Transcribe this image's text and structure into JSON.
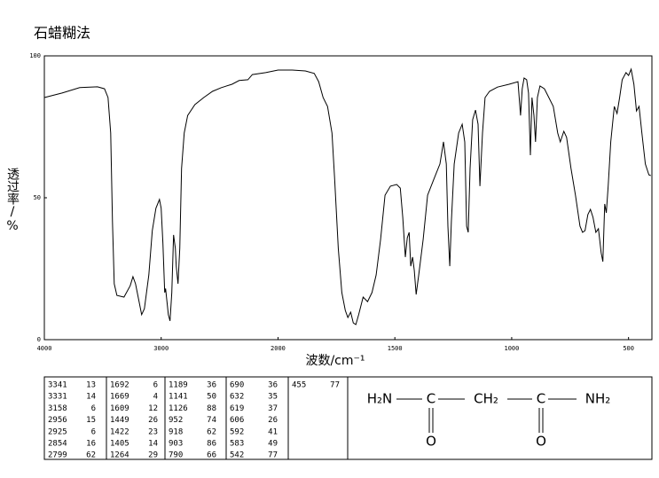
{
  "chart_data": {
    "type": "line",
    "title": "石蜡糊法",
    "x_label": "波数/cm⁻¹",
    "y_label": "透过率/%",
    "color": "#000000",
    "xlim": [
      4000,
      400
    ],
    "xticks": [
      4000,
      3000,
      2000,
      1500,
      1000,
      500
    ],
    "ylim": [
      0,
      100
    ],
    "yticks": [
      0,
      50,
      100
    ],
    "x": [
      4000,
      3848,
      3697,
      3545,
      3485,
      3455,
      3432,
      3417,
      3402,
      3379,
      3318,
      3265,
      3242,
      3220,
      3189,
      3167,
      3144,
      3106,
      3076,
      3045,
      3015,
      3000,
      2985,
      2970,
      2962,
      2939,
      2924,
      2909,
      2894,
      2879,
      2871,
      2856,
      2841,
      2826,
      2803,
      2773,
      2712,
      2636,
      2561,
      2485,
      2394,
      2333,
      2258,
      2220,
      2106,
      2000,
      1939,
      1883,
      1845,
      1826,
      1807,
      1788,
      1769,
      1758,
      1742,
      1727,
      1712,
      1701,
      1689,
      1678,
      1667,
      1655,
      1636,
      1617,
      1598,
      1580,
      1561,
      1542,
      1519,
      1492,
      1477,
      1466,
      1455,
      1447,
      1439,
      1432,
      1424,
      1417,
      1409,
      1398,
      1379,
      1360,
      1333,
      1307,
      1292,
      1280,
      1273,
      1265,
      1258,
      1246,
      1227,
      1212,
      1201,
      1193,
      1186,
      1178,
      1167,
      1155,
      1144,
      1136,
      1125,
      1114,
      1095,
      1061,
      1011,
      973,
      962,
      955,
      947,
      936,
      928,
      920,
      913,
      905,
      898,
      890,
      879,
      860,
      841,
      822,
      803,
      792,
      777,
      765,
      746,
      727,
      708,
      697,
      686,
      674,
      663,
      652,
      640,
      629,
      617,
      610,
      602,
      595,
      587,
      576,
      561,
      549,
      538,
      527,
      511,
      500,
      489,
      477,
      466,
      455,
      443,
      428,
      413,
      405
    ],
    "values": [
      85.3,
      86.9,
      88.8,
      89.1,
      88.4,
      85.3,
      72.8,
      41.6,
      19.7,
      15.6,
      15,
      19,
      22.2,
      19.7,
      13.4,
      8.8,
      10.9,
      22.8,
      38.4,
      46.3,
      49.4,
      46.3,
      33.8,
      16.6,
      18,
      8.8,
      6.6,
      16.6,
      36.9,
      32.2,
      25.9,
      19.7,
      32.2,
      60.3,
      72.8,
      79,
      82.8,
      85.3,
      87.5,
      88.8,
      90,
      91.3,
      91.6,
      93.4,
      94.1,
      95,
      95,
      94.7,
      93.8,
      90.9,
      85.3,
      82.2,
      72.8,
      57.2,
      32.2,
      16.6,
      10.3,
      7.8,
      9.7,
      5.9,
      5.3,
      8.8,
      15,
      13.4,
      16.6,
      22.8,
      35.3,
      50.9,
      54.1,
      54.7,
      53.4,
      43.1,
      29.1,
      35.9,
      37.8,
      25.9,
      29.1,
      24.4,
      15.9,
      22.8,
      35.3,
      50.9,
      56.6,
      61.9,
      69.7,
      61.9,
      40,
      25.9,
      41.6,
      61.9,
      72.8,
      75.9,
      69.7,
      40,
      37.8,
      60.3,
      77.5,
      80.9,
      75.9,
      54.1,
      72.8,
      85.3,
      87.5,
      89,
      90,
      90.9,
      79,
      88.4,
      92.2,
      91.6,
      86.9,
      65,
      85.3,
      79,
      69.7,
      85.3,
      89.4,
      88.4,
      85.3,
      82.2,
      72.8,
      69.7,
      73.4,
      71.3,
      60.3,
      50.9,
      40,
      37.8,
      38.4,
      44.1,
      45.9,
      43.1,
      37.8,
      39.1,
      30.6,
      27.5,
      47.8,
      44.7,
      54.1,
      69.7,
      82.2,
      79.7,
      85.3,
      91.6,
      94.1,
      93.1,
      95.3,
      90,
      80.6,
      82.2,
      72.8,
      61.9,
      58.1,
      57.8
    ]
  },
  "peak_table": {
    "columns": [
      [
        [
          3341,
          13
        ],
        [
          3331,
          14
        ],
        [
          3158,
          6
        ],
        [
          2956,
          15
        ],
        [
          2925,
          6
        ],
        [
          2854,
          16
        ],
        [
          2799,
          62
        ]
      ],
      [
        [
          1692,
          6
        ],
        [
          1669,
          4
        ],
        [
          1609,
          12
        ],
        [
          1449,
          26
        ],
        [
          1422,
          23
        ],
        [
          1405,
          14
        ],
        [
          1264,
          29
        ]
      ],
      [
        [
          1189,
          36
        ],
        [
          1141,
          50
        ],
        [
          1126,
          88
        ],
        [
          952,
          74
        ],
        [
          918,
          62
        ],
        [
          903,
          86
        ],
        [
          790,
          66
        ]
      ],
      [
        [
          690,
          36
        ],
        [
          632,
          35
        ],
        [
          619,
          37
        ],
        [
          606,
          26
        ],
        [
          592,
          41
        ],
        [
          583,
          49
        ],
        [
          542,
          77
        ]
      ],
      [
        [
          455,
          77
        ]
      ]
    ]
  },
  "structure": {
    "chain": [
      "H₂N",
      "C",
      "CH₂",
      "C",
      "NH₂"
    ],
    "oxygens": [
      "O",
      "O"
    ]
  }
}
